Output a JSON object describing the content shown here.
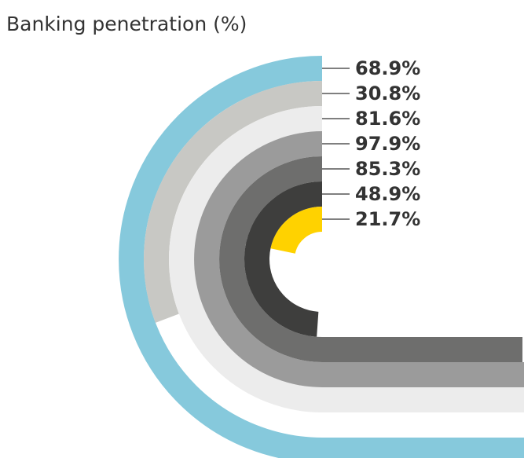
{
  "chart_data": {
    "type": "radial-bar",
    "title": "Banking penetration (%)",
    "values": [
      68.9,
      30.8,
      81.6,
      97.9,
      85.3,
      48.9,
      21.7
    ],
    "value_labels": [
      "68.9%",
      "30.8%",
      "81.6%",
      "97.9%",
      "85.3%",
      "48.9%",
      "21.7%"
    ],
    "colors": [
      "#86c9dc",
      "#c8c8c4",
      "#ececec",
      "#9b9b9b",
      "#6e6e6d",
      "#3e3e3d",
      "#ffd200"
    ],
    "ylim": [
      0,
      100
    ]
  }
}
